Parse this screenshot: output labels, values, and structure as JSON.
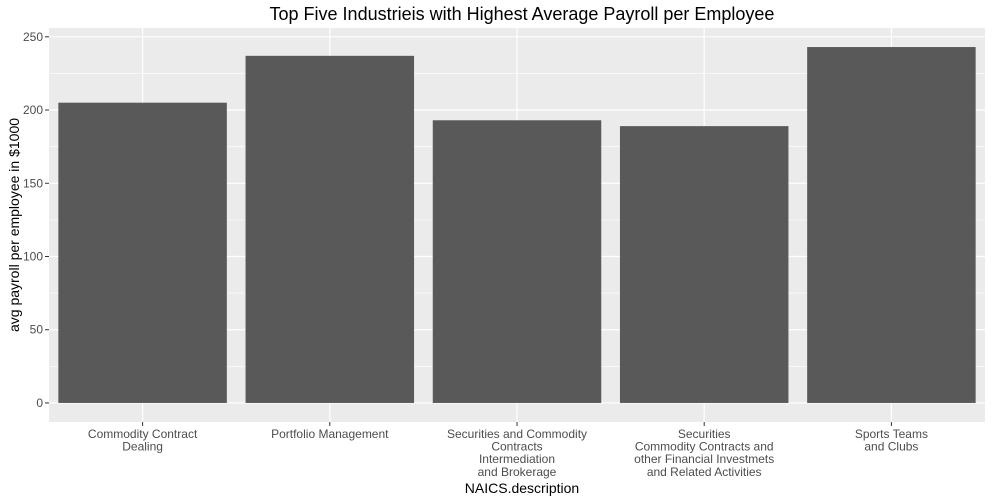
{
  "chart_data": {
    "type": "bar",
    "title": "Top Five Industrieis with Highest Average Payroll per Employee",
    "xlabel": "NAICS.description",
    "ylabel": "avg payroll per employee in $1000",
    "categories": [
      [
        "Commodity Contract",
        "Dealing"
      ],
      [
        "Portfolio Management"
      ],
      [
        "Securities and Commodity",
        "Contracts",
        "Intermediation",
        "and Brokerage"
      ],
      [
        "Securities",
        "Commodity Contracts and",
        "other Financial Investmets",
        "and Related Activities"
      ],
      [
        "Sports Teams",
        "and Clubs"
      ]
    ],
    "values": [
      205,
      237,
      193,
      189,
      243
    ],
    "ylim": [
      -13,
      256
    ],
    "yticks": [
      0,
      50,
      100,
      150,
      200,
      250
    ],
    "grid": true,
    "bar_color": "#595959",
    "panel_background": "#ebebeb",
    "gridline_color": "#ffffff"
  }
}
